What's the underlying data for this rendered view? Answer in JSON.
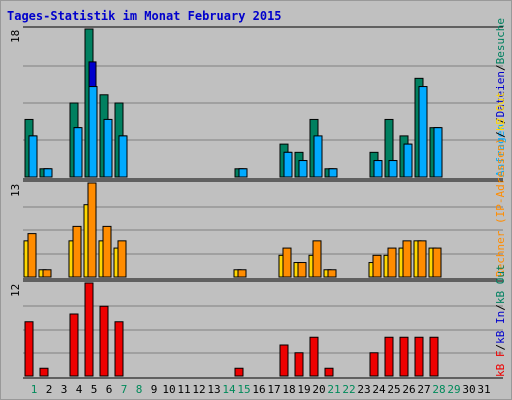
{
  "title": "Tages-Statistik im Monat February 2015",
  "colors": {
    "background": "#c0c0c0",
    "grid": "#808080",
    "title": "#0000cc",
    "weekday_label": "#000000",
    "weekend_label": "#008a5a",
    "hits": "#008060",
    "files": "#0000cc",
    "pages": "#00aaff",
    "visits": "#ff8c00",
    "kb_out": "#ffd700",
    "kb_f": "#ee0000"
  },
  "chart_data": [
    {
      "type": "bar",
      "panel": "requests",
      "axis_max_label": "18",
      "ylim": [
        0,
        18
      ],
      "categories": [
        "1",
        "2",
        "3",
        "4",
        "5",
        "6",
        "7",
        "8",
        "9",
        "10",
        "11",
        "12",
        "13",
        "14",
        "15",
        "16",
        "17",
        "18",
        "19",
        "20",
        "21",
        "22",
        "23",
        "24",
        "25",
        "26",
        "27",
        "28",
        "29",
        "30",
        "31"
      ],
      "weekend_days": [
        "1",
        "7",
        "8",
        "14",
        "15",
        "21",
        "22",
        "28",
        "29"
      ],
      "legend": [
        "Anfragen",
        "/",
        "Dateien",
        "/",
        "Besuche"
      ],
      "series": [
        {
          "name": "Anfragen",
          "values": [
            7,
            1,
            0,
            9,
            18,
            10,
            9,
            0,
            0,
            0,
            0,
            0,
            0,
            0,
            1,
            0,
            0,
            4,
            3,
            7,
            1,
            0,
            0,
            3,
            7,
            5,
            12,
            6,
            0,
            0,
            0
          ]
        },
        {
          "name": "Dateien",
          "values": [
            5,
            1,
            0,
            6,
            14,
            7,
            5,
            0,
            0,
            0,
            0,
            0,
            0,
            0,
            1,
            0,
            0,
            3,
            2,
            2,
            1,
            0,
            0,
            2,
            2,
            4,
            10,
            6,
            0,
            0,
            0
          ]
        },
        {
          "name": "Besuche",
          "values": [
            5,
            1,
            0,
            6,
            11,
            7,
            5,
            0,
            0,
            0,
            0,
            0,
            0,
            0,
            1,
            0,
            0,
            3,
            2,
            5,
            1,
            0,
            0,
            2,
            2,
            4,
            11,
            6,
            0,
            0,
            0
          ]
        }
      ]
    },
    {
      "type": "bar",
      "panel": "traffic",
      "axis_max_label": "13",
      "ylim": [
        0,
        13
      ],
      "categories": [
        "1",
        "2",
        "3",
        "4",
        "5",
        "6",
        "7",
        "8",
        "9",
        "10",
        "11",
        "12",
        "13",
        "14",
        "15",
        "16",
        "17",
        "18",
        "19",
        "20",
        "21",
        "22",
        "23",
        "24",
        "25",
        "26",
        "27",
        "28",
        "29",
        "30",
        "31"
      ],
      "legend": [
        "Rechner (IP-Adressen)",
        "/",
        "kB Out"
      ],
      "series": [
        {
          "name": "Rechner (IP-Adressen)",
          "values": [
            6,
            1,
            0,
            7,
            13,
            7,
            5,
            0,
            0,
            0,
            0,
            0,
            0,
            0,
            1,
            0,
            0,
            4,
            2,
            5,
            1,
            0,
            0,
            3,
            4,
            5,
            5,
            4,
            0,
            0,
            0
          ]
        },
        {
          "name": "kB Out",
          "values": [
            5,
            1,
            0,
            5,
            10,
            5,
            4,
            0,
            0,
            0,
            0,
            0,
            0,
            0,
            1,
            0,
            0,
            3,
            2,
            3,
            1,
            0,
            0,
            2,
            3,
            4,
            5,
            4,
            0,
            0,
            0
          ]
        }
      ]
    },
    {
      "type": "bar",
      "panel": "bandwidth",
      "axis_max_label": "12",
      "ylim": [
        0,
        12
      ],
      "categories": [
        "1",
        "2",
        "3",
        "4",
        "5",
        "6",
        "7",
        "8",
        "9",
        "10",
        "11",
        "12",
        "13",
        "14",
        "15",
        "16",
        "17",
        "18",
        "19",
        "20",
        "21",
        "22",
        "23",
        "24",
        "25",
        "26",
        "27",
        "28",
        "29",
        "30",
        "31"
      ],
      "legend": [
        "kB F",
        "/",
        "kB In",
        "/",
        "kB Out"
      ],
      "series": [
        {
          "name": "kB F",
          "values": [
            7,
            1,
            0,
            8,
            12,
            9,
            7,
            0,
            0,
            0,
            0,
            0,
            0,
            0,
            1,
            0,
            0,
            4,
            3,
            5,
            1,
            0,
            0,
            3,
            5,
            5,
            5,
            5,
            0,
            0,
            0
          ]
        }
      ]
    }
  ]
}
